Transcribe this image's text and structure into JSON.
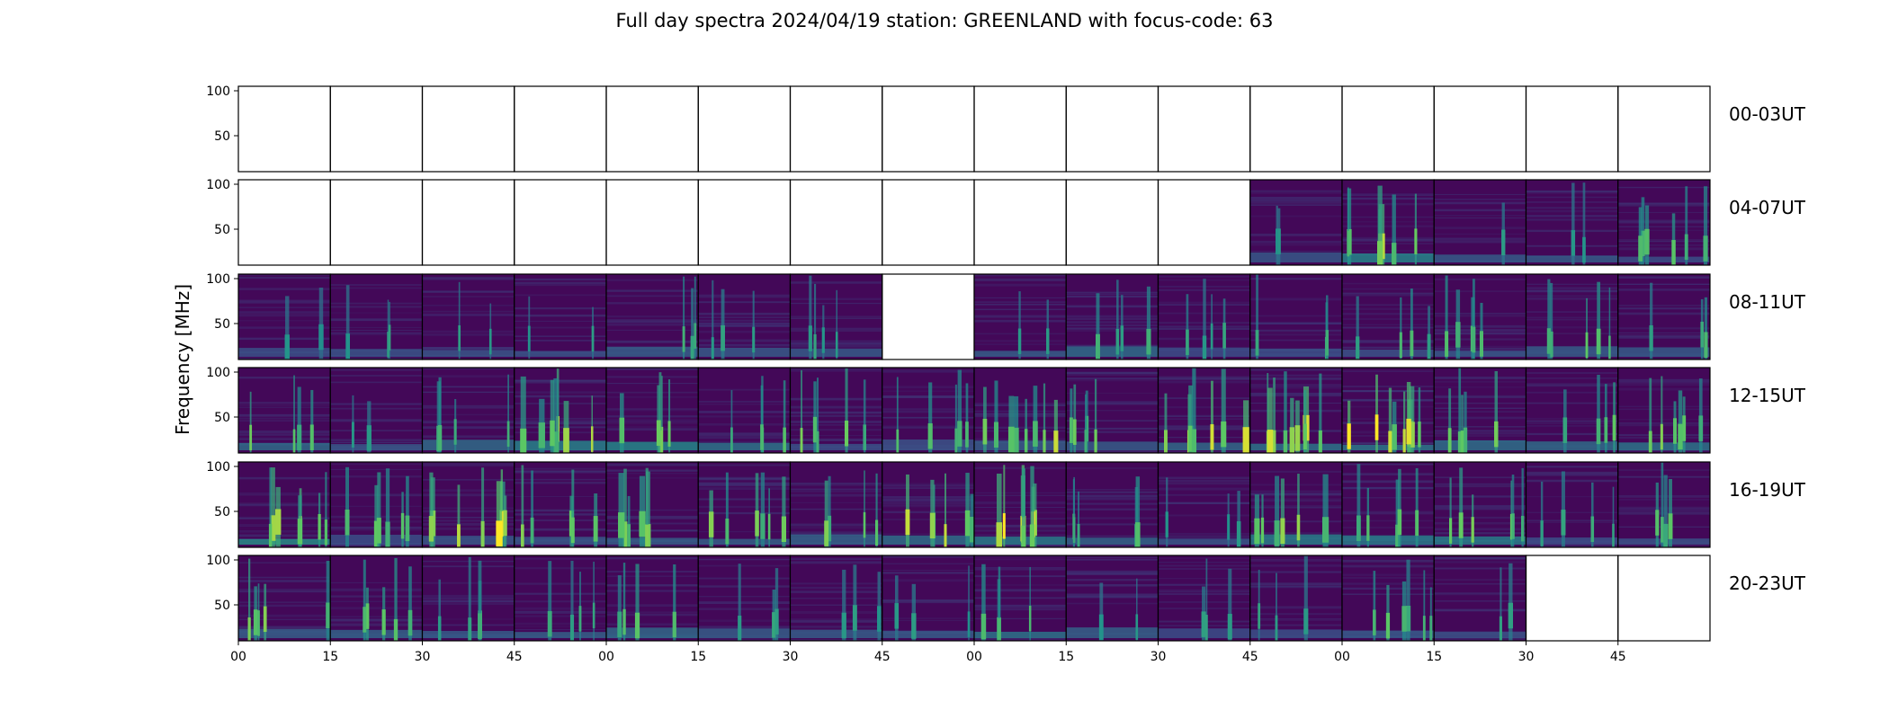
{
  "figure": {
    "title": "Full day spectra 2024/04/19 station: GREENLAND with focus-code: 63"
  },
  "chart_data": {
    "type": "heatmap",
    "title": "Full day spectra 2024/04/19 station: GREENLAND with focus-code: 63",
    "ylabel": "Frequency [MHz]",
    "xlabel": "",
    "ylim": [
      10,
      105
    ],
    "yticks": [
      50,
      100
    ],
    "xtick_labels": [
      "00",
      "15",
      "30",
      "45",
      "00",
      "15",
      "30",
      "45",
      "00",
      "15",
      "30",
      "45",
      "00",
      "15",
      "30",
      "45"
    ],
    "colormap": [
      "#440154",
      "#3b528b",
      "#21918c",
      "#5ec962",
      "#fde725"
    ],
    "rows": [
      {
        "label": "00-03UT",
        "cells": [
          {
            "has_data": false
          },
          {
            "has_data": false
          },
          {
            "has_data": false
          },
          {
            "has_data": false
          },
          {
            "has_data": false
          },
          {
            "has_data": false
          },
          {
            "has_data": false
          },
          {
            "has_data": false
          },
          {
            "has_data": false
          },
          {
            "has_data": false
          },
          {
            "has_data": false
          },
          {
            "has_data": false
          },
          {
            "has_data": false
          },
          {
            "has_data": false
          },
          {
            "has_data": false
          },
          {
            "has_data": false
          }
        ]
      },
      {
        "label": "04-07UT",
        "cells": [
          {
            "has_data": false
          },
          {
            "has_data": false
          },
          {
            "has_data": false
          },
          {
            "has_data": false
          },
          {
            "has_data": false
          },
          {
            "has_data": false
          },
          {
            "has_data": false
          },
          {
            "has_data": false
          },
          {
            "has_data": false
          },
          {
            "has_data": false
          },
          {
            "has_data": false
          },
          {
            "has_data": true,
            "activity": 0.15
          },
          {
            "has_data": true,
            "activity": 0.7
          },
          {
            "has_data": true,
            "activity": 0.15
          },
          {
            "has_data": true,
            "activity": 0.15
          },
          {
            "has_data": true,
            "activity": 0.6
          }
        ]
      },
      {
        "label": "08-11UT",
        "cells": [
          {
            "has_data": true,
            "activity": 0.1
          },
          {
            "has_data": true,
            "activity": 0.2
          },
          {
            "has_data": true,
            "activity": 0.2
          },
          {
            "has_data": true,
            "activity": 0.15
          },
          {
            "has_data": true,
            "activity": 0.3
          },
          {
            "has_data": true,
            "activity": 0.2
          },
          {
            "has_data": true,
            "activity": 0.2
          },
          {
            "has_data": false
          },
          {
            "has_data": true,
            "activity": 0.2
          },
          {
            "has_data": true,
            "activity": 0.35
          },
          {
            "has_data": true,
            "activity": 0.25
          },
          {
            "has_data": true,
            "activity": 0.35
          },
          {
            "has_data": true,
            "activity": 0.35
          },
          {
            "has_data": true,
            "activity": 0.45
          },
          {
            "has_data": true,
            "activity": 0.45
          },
          {
            "has_data": true,
            "activity": 0.35
          }
        ]
      },
      {
        "label": "12-15UT",
        "cells": [
          {
            "has_data": true,
            "activity": 0.5
          },
          {
            "has_data": true,
            "activity": 0.15
          },
          {
            "has_data": true,
            "activity": 0.4
          },
          {
            "has_data": true,
            "activity": 0.65
          },
          {
            "has_data": true,
            "activity": 0.65
          },
          {
            "has_data": true,
            "activity": 0.4
          },
          {
            "has_data": true,
            "activity": 0.55
          },
          {
            "has_data": true,
            "activity": 0.4
          },
          {
            "has_data": true,
            "activity": 0.8
          },
          {
            "has_data": true,
            "activity": 0.55
          },
          {
            "has_data": true,
            "activity": 0.8
          },
          {
            "has_data": true,
            "activity": 0.9
          },
          {
            "has_data": true,
            "activity": 0.85
          },
          {
            "has_data": true,
            "activity": 0.6
          },
          {
            "has_data": true,
            "activity": 0.45
          },
          {
            "has_data": true,
            "activity": 0.55
          }
        ]
      },
      {
        "label": "16-19UT",
        "cells": [
          {
            "has_data": true,
            "activity": 0.7
          },
          {
            "has_data": true,
            "activity": 0.5
          },
          {
            "has_data": true,
            "activity": 0.95
          },
          {
            "has_data": true,
            "activity": 0.55
          },
          {
            "has_data": true,
            "activity": 0.65
          },
          {
            "has_data": true,
            "activity": 0.55
          },
          {
            "has_data": true,
            "activity": 0.55
          },
          {
            "has_data": true,
            "activity": 0.7
          },
          {
            "has_data": true,
            "activity": 0.9
          },
          {
            "has_data": true,
            "activity": 0.4
          },
          {
            "has_data": true,
            "activity": 0.15
          },
          {
            "has_data": true,
            "activity": 0.65
          },
          {
            "has_data": true,
            "activity": 0.55
          },
          {
            "has_data": true,
            "activity": 0.55
          },
          {
            "has_data": true,
            "activity": 0.3
          },
          {
            "has_data": true,
            "activity": 0.5
          }
        ]
      },
      {
        "label": "20-23UT",
        "cells": [
          {
            "has_data": true,
            "activity": 0.55
          },
          {
            "has_data": true,
            "activity": 0.55
          },
          {
            "has_data": true,
            "activity": 0.3
          },
          {
            "has_data": true,
            "activity": 0.35
          },
          {
            "has_data": true,
            "activity": 0.45
          },
          {
            "has_data": true,
            "activity": 0.25
          },
          {
            "has_data": true,
            "activity": 0.2
          },
          {
            "has_data": true,
            "activity": 0.15
          },
          {
            "has_data": true,
            "activity": 0.45
          },
          {
            "has_data": true,
            "activity": 0.2
          },
          {
            "has_data": true,
            "activity": 0.2
          },
          {
            "has_data": true,
            "activity": 0.2
          },
          {
            "has_data": true,
            "activity": 0.5
          },
          {
            "has_data": true,
            "activity": 0.2
          },
          {
            "has_data": false
          },
          {
            "has_data": false
          }
        ]
      }
    ]
  }
}
